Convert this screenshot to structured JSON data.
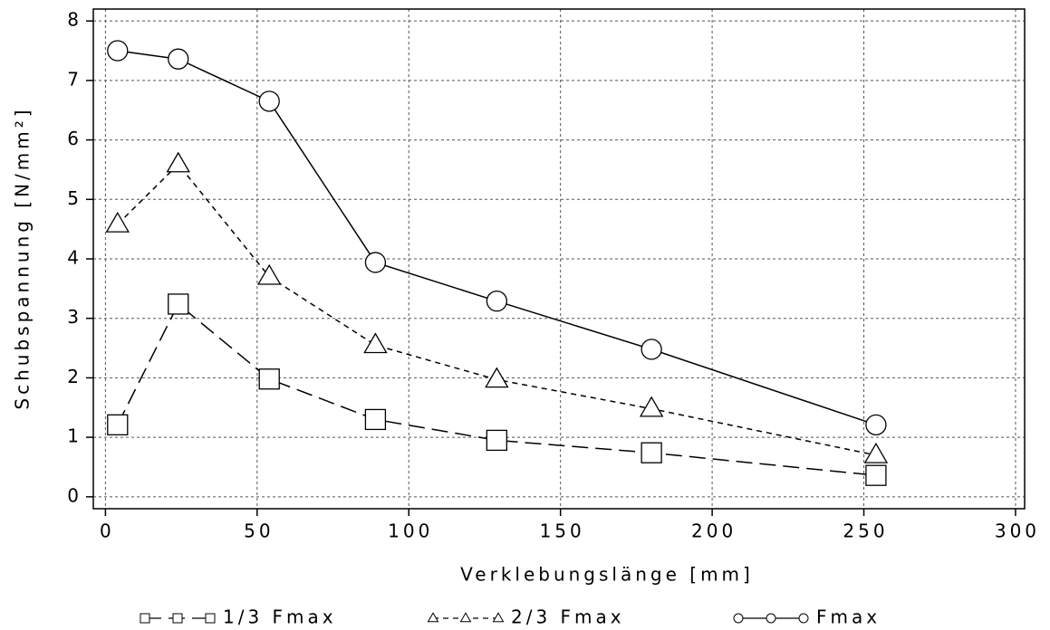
{
  "chart_data": {
    "type": "line",
    "xlabel": "Verklebungslänge [mm]",
    "ylabel": "Schubspannung [N/mm²]",
    "x": [
      4,
      24,
      54,
      89,
      129,
      180,
      254
    ],
    "series": [
      {
        "name": "1/3 Fmax",
        "color": "#000000",
        "linestyle": "longdash",
        "marker": "square",
        "values": [
          1.21,
          3.24,
          1.98,
          1.3,
          0.95,
          0.74,
          0.36
        ]
      },
      {
        "name": "2/3 Fmax",
        "color": "#000000",
        "linestyle": "dashed",
        "marker": "triangle",
        "values": [
          4.58,
          5.59,
          3.7,
          2.55,
          1.97,
          1.48,
          0.7
        ]
      },
      {
        "name": "Fmax",
        "color": "#000000",
        "linestyle": "solid",
        "marker": "circle",
        "values": [
          7.5,
          7.36,
          6.65,
          3.94,
          3.29,
          2.48,
          1.21
        ]
      }
    ],
    "xlim": [
      -4,
      303
    ],
    "ylim": [
      -0.2,
      8.2
    ],
    "xticks": [
      0,
      50,
      100,
      150,
      200,
      250,
      300
    ],
    "yticks": [
      0,
      1,
      2,
      3,
      4,
      5,
      6,
      7,
      8
    ],
    "grid": true,
    "legend": "bottom"
  }
}
